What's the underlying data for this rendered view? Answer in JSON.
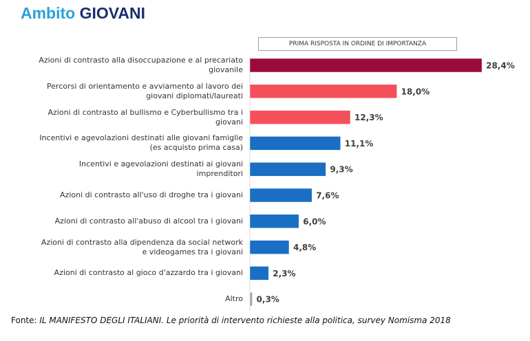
{
  "chart_data": {
    "type": "bar",
    "orientation": "horizontal",
    "title_prefix": "Ambito",
    "title": "GIOVANI",
    "subtitle": "PRIMA RISPOSTA IN ORDINE DI IMPORTANZA",
    "categories": [
      "Azioni di contrasto alla disoccupazione e al precariato\ngiovanile",
      "Percorsi di orientamento e avviamento al lavoro dei\ngiovani diplomati/laureati",
      "Azioni di contrasto al bullismo e Cyberbullismo tra i\ngiovani",
      "Incentivi e agevolazioni destinati alle giovani famiglie\n(es acquisto prima casa)",
      "Incentivi e agevolazioni destinati ai giovani\nimprenditori",
      "Azioni di contrasto all'uso di droghe tra i giovani",
      "Azioni di contrasto all'abuso di alcool tra i giovani",
      "Azioni di contrasto alla dipendenza da social network\ne videogames tra i giovani",
      "Azioni di contrasto al gioco d'azzardo tra i giovani",
      "Altro"
    ],
    "values": [
      28.4,
      18.0,
      12.3,
      11.1,
      9.3,
      7.6,
      6.0,
      4.8,
      2.3,
      0.3
    ],
    "value_labels": [
      "28,4%",
      "18,0%",
      "12,3%",
      "11,1%",
      "9,3%",
      "7,6%",
      "6,0%",
      "4,8%",
      "2,3%",
      "0,3%"
    ],
    "colors": [
      "#9b0a3c",
      "#f5505a",
      "#f5505a",
      "#1a6fc4",
      "#1a6fc4",
      "#1a6fc4",
      "#1a6fc4",
      "#1a6fc4",
      "#1a6fc4",
      "#a6a6a6"
    ],
    "source_label": "Fonte:",
    "source": "IL MANIFESTO DEGLI ITALIANI. Le priorità di intervento richieste alla politica, survey Nomisma 2018"
  }
}
